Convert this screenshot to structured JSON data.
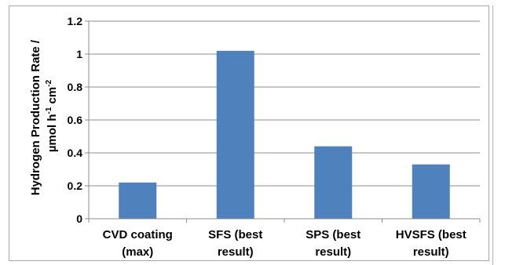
{
  "chart_data": {
    "type": "bar",
    "title": "",
    "xlabel": "",
    "ylabel_line1": "Hydrogen Production Rate /",
    "ylabel_line2_prefix": "µmol h",
    "ylabel_sup1": "-1",
    "ylabel_line2_mid": " cm",
    "ylabel_sup2": "-2",
    "categories": [
      [
        "CVD coating",
        "(max)"
      ],
      [
        "SFS (best",
        "result)"
      ],
      [
        "SPS (best",
        "result)"
      ],
      [
        "HVSFS (best",
        "result)"
      ]
    ],
    "values": [
      0.22,
      1.02,
      0.44,
      0.33
    ],
    "ylim": [
      0,
      1.2
    ],
    "yticks": [
      0,
      0.2,
      0.4,
      0.6,
      0.8,
      1,
      1.2
    ],
    "ytick_labels": [
      "0",
      "0.2",
      "0.4",
      "0.6",
      "0.8",
      "1",
      "1.2"
    ],
    "grid": true,
    "legend": "none",
    "bar_color": "#4f81bd",
    "grid_color": "#8c8c8c"
  }
}
